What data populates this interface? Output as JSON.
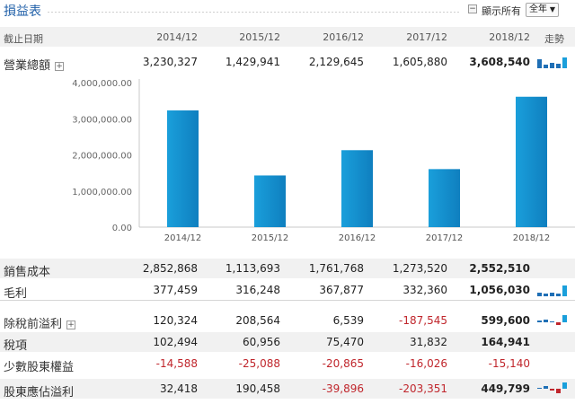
{
  "header": {
    "title": "損益表",
    "show_all_label": "顯示所有",
    "period_select": "全年"
  },
  "columns": {
    "label": "截止日期",
    "years": [
      "2014/12",
      "2015/12",
      "2016/12",
      "2017/12",
      "2018/12"
    ],
    "trend": "走勢"
  },
  "rows": {
    "revenue": {
      "label": "營業總額",
      "values": [
        "3,230,327",
        "1,429,941",
        "2,129,645",
        "1,605,880",
        "3,608,540"
      ]
    },
    "cogs": {
      "label": "銷售成本",
      "values": [
        "2,852,868",
        "1,113,693",
        "1,761,768",
        "1,273,520",
        "2,552,510"
      ]
    },
    "gross": {
      "label": "毛利",
      "values": [
        "377,459",
        "316,248",
        "367,877",
        "332,360",
        "1,056,030"
      ]
    },
    "pretax": {
      "label": "除稅前溢利",
      "values": [
        "120,324",
        "208,564",
        "6,539",
        "-187,545",
        "599,600"
      ]
    },
    "tax": {
      "label": "稅項",
      "values": [
        "102,494",
        "60,956",
        "75,470",
        "31,832",
        "164,941"
      ]
    },
    "minority": {
      "label": "少數股東權益",
      "values": [
        "-14,588",
        "-25,088",
        "-20,865",
        "-16,026",
        "-15,140"
      ]
    },
    "net": {
      "label": "股東應佔溢利",
      "values": [
        "32,418",
        "190,458",
        "-39,896",
        "-203,351",
        "449,799"
      ]
    }
  },
  "colors": {
    "bar": "#1a9fdb",
    "bar_dark": "#0f7fbf",
    "negative": "#c0262c",
    "spark": "#1f6fb5"
  },
  "chart_data": {
    "type": "bar",
    "categories": [
      "2014/12",
      "2015/12",
      "2016/12",
      "2017/12",
      "2018/12"
    ],
    "values": [
      3230327,
      1429941,
      2129645,
      1605880,
      3608540
    ],
    "yticks": [
      "4,000,000.00",
      "3,000,000.00",
      "2,000,000.00",
      "1,000,000.00",
      "0.00"
    ],
    "ylim": [
      0,
      4000000
    ],
    "grid": false
  }
}
